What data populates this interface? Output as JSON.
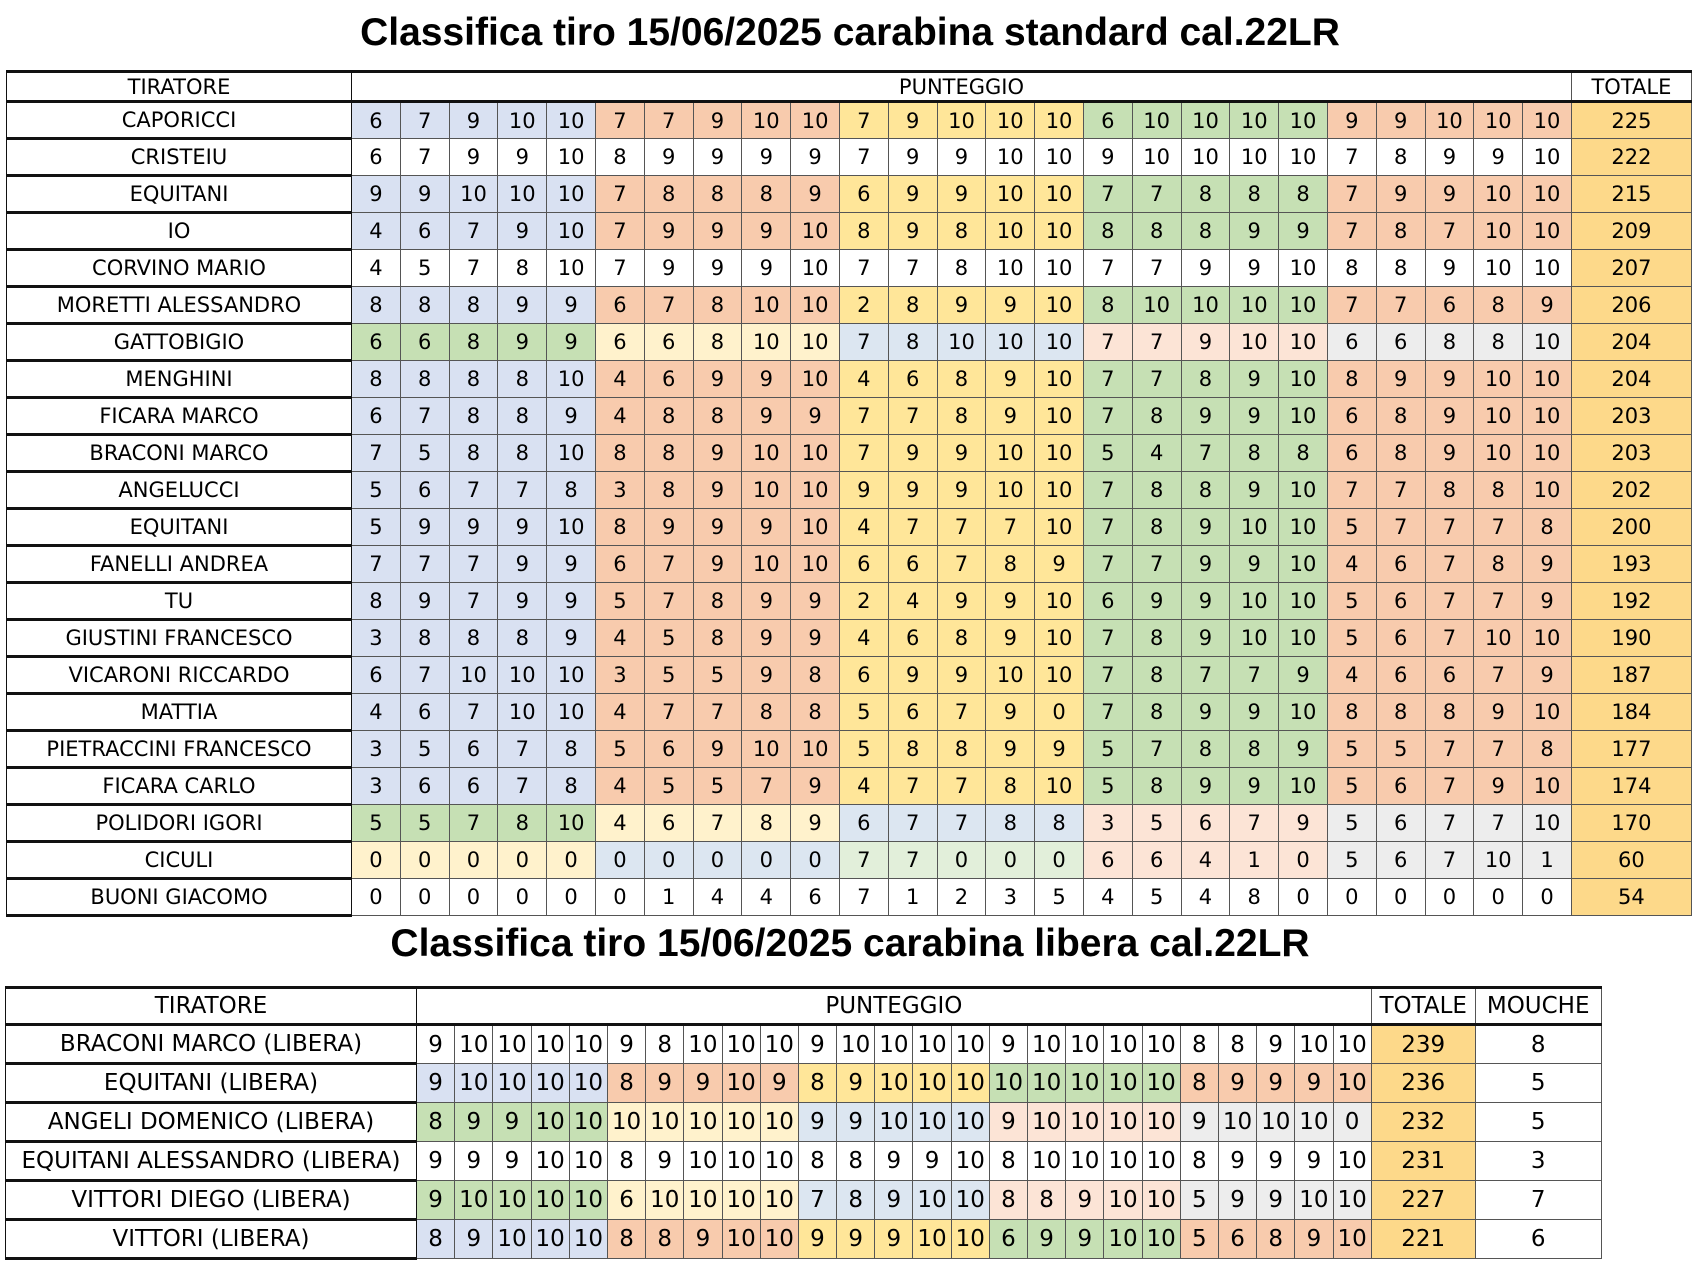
{
  "title1": "Classifica tiro 15/06/2025 carabina standard cal.22LR",
  "title2": "Classifica tiro 15/06/2025 carabina libera cal.22LR",
  "table1": {
    "headers": {
      "name": "TIRATORE",
      "score": "PUNTEGGIO",
      "total": "TOTALE"
    },
    "rows": [
      {
        "name": "CAPORICCI",
        "scores": [
          6,
          7,
          9,
          10,
          10,
          7,
          7,
          9,
          10,
          10,
          7,
          9,
          10,
          10,
          10,
          6,
          10,
          10,
          10,
          10,
          9,
          9,
          10,
          10,
          10
        ],
        "total": "225",
        "colors": [
          "blue",
          "orange",
          "yellow",
          "green",
          "orange"
        ]
      },
      {
        "name": "CRISTEIU",
        "scores": [
          6,
          7,
          9,
          9,
          10,
          8,
          9,
          9,
          9,
          9,
          7,
          9,
          9,
          10,
          10,
          9,
          10,
          10,
          10,
          10,
          7,
          8,
          9,
          9,
          10
        ],
        "total": "222",
        "colors": [
          "white",
          "white",
          "white",
          "white",
          "white"
        ]
      },
      {
        "name": "EQUITANI",
        "scores": [
          9,
          9,
          10,
          10,
          10,
          7,
          8,
          8,
          8,
          9,
          6,
          9,
          9,
          10,
          10,
          7,
          7,
          8,
          8,
          8,
          7,
          9,
          9,
          10,
          10
        ],
        "total": "215",
        "colors": [
          "blue",
          "orange",
          "yellow",
          "green",
          "orange"
        ]
      },
      {
        "name": "IO",
        "scores": [
          4,
          6,
          7,
          9,
          10,
          7,
          9,
          9,
          9,
          10,
          8,
          9,
          8,
          10,
          10,
          8,
          8,
          8,
          9,
          9,
          7,
          8,
          7,
          10,
          10
        ],
        "total": "209",
        "colors": [
          "blue",
          "orange",
          "yellow",
          "green",
          "orange"
        ]
      },
      {
        "name": "CORVINO MARIO",
        "scores": [
          4,
          5,
          7,
          8,
          10,
          7,
          9,
          9,
          9,
          10,
          7,
          7,
          8,
          10,
          10,
          7,
          7,
          9,
          9,
          10,
          8,
          8,
          9,
          10,
          10
        ],
        "total": "207",
        "colors": [
          "white",
          "white",
          "white",
          "white",
          "white"
        ]
      },
      {
        "name": "MORETTI ALESSANDRO",
        "scores": [
          8,
          8,
          8,
          9,
          9,
          6,
          7,
          8,
          10,
          10,
          2,
          8,
          9,
          9,
          10,
          8,
          10,
          10,
          10,
          10,
          7,
          7,
          6,
          8,
          9
        ],
        "total": "206",
        "colors": [
          "blue",
          "orange",
          "yellow",
          "green",
          "orange"
        ]
      },
      {
        "name": "GATTOBIGIO",
        "scores": [
          6,
          6,
          8,
          9,
          9,
          6,
          6,
          8,
          10,
          10,
          7,
          8,
          10,
          10,
          10,
          7,
          7,
          9,
          10,
          10,
          6,
          6,
          8,
          8,
          10
        ],
        "total": "204",
        "colors": [
          "green",
          "lyellow",
          "lblue",
          "lpink",
          "lgray"
        ]
      },
      {
        "name": "MENGHINI",
        "scores": [
          8,
          8,
          8,
          8,
          10,
          4,
          6,
          9,
          9,
          10,
          4,
          6,
          8,
          9,
          10,
          7,
          7,
          8,
          9,
          10,
          8,
          9,
          9,
          10,
          10
        ],
        "total": "204",
        "colors": [
          "blue",
          "orange",
          "yellow",
          "green",
          "orange"
        ]
      },
      {
        "name": "FICARA MARCO",
        "scores": [
          6,
          7,
          8,
          8,
          9,
          4,
          8,
          8,
          9,
          9,
          7,
          7,
          8,
          9,
          10,
          7,
          8,
          9,
          9,
          10,
          6,
          8,
          9,
          10,
          10
        ],
        "total": "203",
        "colors": [
          "blue",
          "orange",
          "yellow",
          "green",
          "orange"
        ]
      },
      {
        "name": "BRACONI MARCO",
        "scores": [
          7,
          5,
          8,
          8,
          10,
          8,
          8,
          9,
          10,
          10,
          7,
          9,
          9,
          10,
          10,
          5,
          4,
          7,
          8,
          8,
          6,
          8,
          9,
          10,
          10
        ],
        "total": "203",
        "colors": [
          "blue",
          "orange",
          "yellow",
          "green",
          "orange"
        ]
      },
      {
        "name": "ANGELUCCI",
        "scores": [
          5,
          6,
          7,
          7,
          8,
          3,
          8,
          9,
          10,
          10,
          9,
          9,
          9,
          10,
          10,
          7,
          8,
          8,
          9,
          10,
          7,
          7,
          8,
          8,
          10
        ],
        "total": "202",
        "colors": [
          "blue",
          "orange",
          "yellow",
          "green",
          "orange"
        ]
      },
      {
        "name": "EQUITANI",
        "scores": [
          5,
          9,
          9,
          9,
          10,
          8,
          9,
          9,
          9,
          10,
          4,
          7,
          7,
          7,
          10,
          7,
          8,
          9,
          10,
          10,
          5,
          7,
          7,
          7,
          8
        ],
        "total": "200",
        "colors": [
          "blue",
          "orange",
          "yellow",
          "green",
          "orange"
        ]
      },
      {
        "name": "FANELLI ANDREA",
        "scores": [
          7,
          7,
          7,
          9,
          9,
          6,
          7,
          9,
          10,
          10,
          6,
          6,
          7,
          8,
          9,
          7,
          7,
          9,
          9,
          10,
          4,
          6,
          7,
          8,
          9
        ],
        "total": "193",
        "colors": [
          "blue",
          "orange",
          "yellow",
          "green",
          "orange"
        ]
      },
      {
        "name": "TU",
        "scores": [
          8,
          9,
          7,
          9,
          9,
          5,
          7,
          8,
          9,
          9,
          2,
          4,
          9,
          9,
          10,
          6,
          9,
          9,
          10,
          10,
          5,
          6,
          7,
          7,
          9
        ],
        "total": "192",
        "colors": [
          "blue",
          "orange",
          "yellow",
          "green",
          "orange"
        ]
      },
      {
        "name": "GIUSTINI FRANCESCO",
        "scores": [
          3,
          8,
          8,
          8,
          9,
          4,
          5,
          8,
          9,
          9,
          4,
          6,
          8,
          9,
          10,
          7,
          8,
          9,
          10,
          10,
          5,
          6,
          7,
          10,
          10
        ],
        "total": "190",
        "colors": [
          "blue",
          "orange",
          "yellow",
          "green",
          "orange"
        ]
      },
      {
        "name": "VICARONI RICCARDO",
        "scores": [
          6,
          7,
          10,
          10,
          10,
          3,
          5,
          5,
          9,
          8,
          6,
          9,
          9,
          10,
          10,
          7,
          8,
          7,
          7,
          9,
          4,
          6,
          6,
          7,
          9
        ],
        "total": "187",
        "colors": [
          "blue",
          "orange",
          "yellow",
          "green",
          "orange"
        ]
      },
      {
        "name": "MATTIA",
        "scores": [
          4,
          6,
          7,
          10,
          10,
          4,
          7,
          7,
          8,
          8,
          5,
          6,
          7,
          9,
          0,
          7,
          8,
          9,
          9,
          10,
          8,
          8,
          8,
          9,
          10
        ],
        "total": "184",
        "colors": [
          "blue",
          "orange",
          "yellow",
          "green",
          "orange"
        ]
      },
      {
        "name": "PIETRACCINI FRANCESCO",
        "scores": [
          3,
          5,
          6,
          7,
          8,
          5,
          6,
          9,
          10,
          10,
          5,
          8,
          8,
          9,
          9,
          5,
          7,
          8,
          8,
          9,
          5,
          5,
          7,
          7,
          8
        ],
        "total": "177",
        "colors": [
          "blue",
          "orange",
          "yellow",
          "green",
          "orange"
        ]
      },
      {
        "name": "FICARA CARLO",
        "scores": [
          3,
          6,
          6,
          7,
          8,
          4,
          5,
          5,
          7,
          9,
          4,
          7,
          7,
          8,
          10,
          5,
          8,
          9,
          9,
          10,
          5,
          6,
          7,
          9,
          10
        ],
        "total": "174",
        "colors": [
          "blue",
          "orange",
          "yellow",
          "green",
          "orange"
        ]
      },
      {
        "name": "POLIDORI IGORI",
        "scores": [
          5,
          5,
          7,
          8,
          10,
          4,
          6,
          7,
          8,
          9,
          6,
          7,
          7,
          8,
          8,
          3,
          5,
          6,
          7,
          9,
          5,
          6,
          7,
          7,
          10
        ],
        "total": "170",
        "colors": [
          "green",
          "lyellow",
          "lblue",
          "lpink",
          "lgray"
        ]
      },
      {
        "name": "CICULI",
        "scores": [
          0,
          0,
          0,
          0,
          0,
          0,
          0,
          0,
          0,
          0,
          7,
          7,
          0,
          0,
          0,
          6,
          6,
          4,
          1,
          0,
          5,
          6,
          7,
          10,
          1
        ],
        "total": "60",
        "colors": [
          "lyellow",
          "lblue",
          "lgreen",
          "lpink",
          "lgray"
        ],
        "highlight": true
      },
      {
        "name": "BUONI GIACOMO",
        "scores": [
          0,
          0,
          0,
          0,
          0,
          0,
          1,
          4,
          4,
          6,
          7,
          1,
          2,
          3,
          5,
          4,
          5,
          4,
          8,
          0,
          0,
          0,
          0,
          0,
          0
        ],
        "total": "54",
        "colors": [
          "white",
          "white",
          "white",
          "white",
          "white"
        ]
      }
    ]
  },
  "table2": {
    "headers": {
      "name": "TIRATORE",
      "score": "PUNTEGGIO",
      "total": "TOTALE",
      "mouche": "MOUCHE"
    },
    "rows": [
      {
        "name": "BRACONI MARCO (LIBERA)",
        "scores": [
          9,
          10,
          10,
          10,
          10,
          9,
          8,
          10,
          10,
          10,
          9,
          10,
          10,
          10,
          10,
          9,
          10,
          10,
          10,
          10,
          8,
          8,
          9,
          10,
          10
        ],
        "total": "239",
        "mouche": "8",
        "colors": [
          "white",
          "white",
          "white",
          "white",
          "white"
        ]
      },
      {
        "name": "EQUITANI (LIBERA)",
        "scores": [
          9,
          10,
          10,
          10,
          10,
          8,
          9,
          9,
          10,
          9,
          8,
          9,
          10,
          10,
          10,
          10,
          10,
          10,
          10,
          10,
          8,
          9,
          9,
          9,
          10
        ],
        "total": "236",
        "mouche": "5",
        "colors": [
          "blue",
          "orange",
          "yellow",
          "green",
          "orange"
        ]
      },
      {
        "name": "ANGELI DOMENICO (LIBERA)",
        "scores": [
          8,
          9,
          9,
          10,
          10,
          10,
          10,
          10,
          10,
          10,
          9,
          9,
          10,
          10,
          10,
          9,
          10,
          10,
          10,
          10,
          9,
          10,
          10,
          10,
          0
        ],
        "total": "232",
        "mouche": "5",
        "colors": [
          "green",
          "lyellow",
          "lblue",
          "lpink",
          "lgray"
        ]
      },
      {
        "name": "EQUITANI ALESSANDRO (LIBERA)",
        "scores": [
          9,
          9,
          9,
          10,
          10,
          8,
          9,
          10,
          10,
          10,
          8,
          8,
          9,
          9,
          10,
          8,
          10,
          10,
          10,
          10,
          8,
          9,
          9,
          9,
          10
        ],
        "total": "231",
        "mouche": "3",
        "colors": [
          "white",
          "white",
          "white",
          "white",
          "white"
        ]
      },
      {
        "name": "VITTORI DIEGO (LIBERA)",
        "scores": [
          9,
          10,
          10,
          10,
          10,
          6,
          10,
          10,
          10,
          10,
          7,
          8,
          9,
          10,
          10,
          8,
          8,
          9,
          10,
          10,
          5,
          9,
          9,
          10,
          10
        ],
        "total": "227",
        "mouche": "7",
        "colors": [
          "green",
          "lyellow",
          "lblue",
          "lpink",
          "lgray"
        ]
      },
      {
        "name": "VITTORI (LIBERA)",
        "scores": [
          8,
          9,
          10,
          10,
          10,
          8,
          8,
          9,
          10,
          10,
          9,
          9,
          9,
          10,
          10,
          6,
          9,
          9,
          10,
          10,
          5,
          6,
          8,
          9,
          10
        ],
        "total": "221",
        "mouche": "6",
        "colors": [
          "blue",
          "orange",
          "yellow",
          "green",
          "orange"
        ]
      }
    ]
  }
}
